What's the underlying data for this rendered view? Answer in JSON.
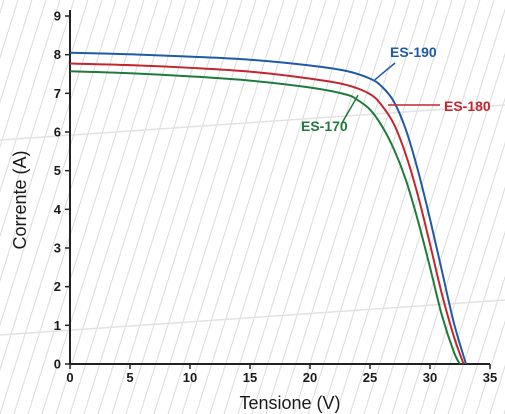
{
  "chart_data": {
    "type": "line",
    "xlabel": "Tensione (V)",
    "ylabel": "Corrente (A)",
    "xlim": [
      0,
      35
    ],
    "ylim": [
      0,
      9
    ],
    "x_ticks": [
      "0",
      "5",
      "10",
      "15",
      "20",
      "25",
      "30",
      "35"
    ],
    "y_ticks": [
      "0",
      "1",
      "2",
      "3",
      "4",
      "5",
      "6",
      "7",
      "8",
      "9"
    ],
    "grid": false,
    "series": [
      {
        "name": "ES-190",
        "color": "#1f5aa6",
        "x": [
          0,
          5,
          10,
          15,
          20,
          23,
          25,
          26,
          27,
          28,
          29,
          30,
          31,
          32,
          33
        ],
        "y": [
          8.05,
          8.01,
          7.95,
          7.87,
          7.72,
          7.58,
          7.38,
          7.17,
          6.78,
          6.05,
          5.0,
          3.75,
          2.4,
          1.05,
          0.0
        ]
      },
      {
        "name": "ES-180",
        "color": "#c4262e",
        "x": [
          0,
          5,
          10,
          15,
          20,
          23,
          25,
          26,
          27,
          28,
          29,
          30,
          31,
          32,
          32.8
        ],
        "y": [
          7.77,
          7.73,
          7.66,
          7.56,
          7.38,
          7.22,
          6.98,
          6.68,
          6.2,
          5.4,
          4.35,
          3.1,
          1.8,
          0.7,
          0.0
        ]
      },
      {
        "name": "ES-170",
        "color": "#1f7a3c",
        "x": [
          0,
          5,
          10,
          15,
          20,
          23,
          24,
          25,
          26,
          27,
          28,
          29,
          30,
          31,
          32,
          32.5
        ],
        "y": [
          7.57,
          7.52,
          7.44,
          7.33,
          7.15,
          6.97,
          6.82,
          6.58,
          6.15,
          5.55,
          4.75,
          3.7,
          2.5,
          1.25,
          0.3,
          0.0
        ]
      }
    ],
    "annotations": [
      {
        "text": "ES-190",
        "series": "ES-190"
      },
      {
        "text": "ES-180",
        "series": "ES-180"
      },
      {
        "text": "ES-170",
        "series": "ES-170"
      }
    ]
  }
}
